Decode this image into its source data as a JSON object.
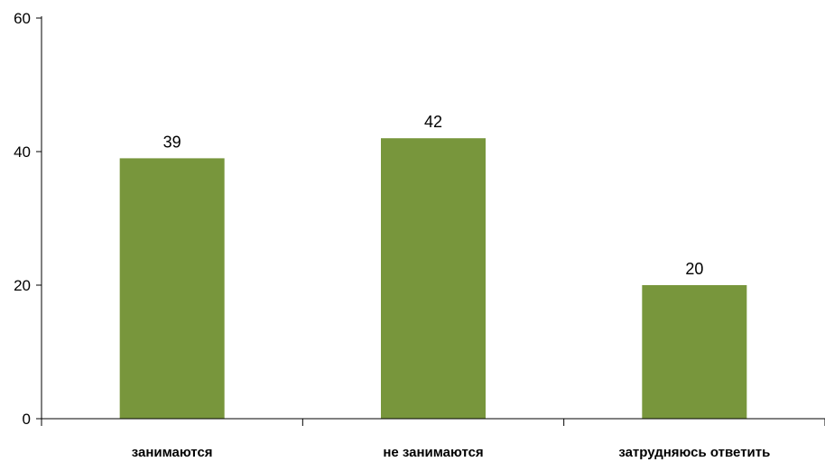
{
  "chart_data": {
    "type": "bar",
    "categories": [
      "занимаются",
      "не занимаются",
      "затрудняюсь ответить"
    ],
    "values": [
      39,
      42,
      20
    ],
    "data_labels": [
      "39",
      "42",
      "20"
    ],
    "title": "",
    "xlabel": "",
    "ylabel": "",
    "ylim": [
      0,
      60
    ],
    "yticks": [
      0,
      20,
      40,
      60
    ],
    "grid": false,
    "legend": "none",
    "bar_color": "#78963c"
  }
}
